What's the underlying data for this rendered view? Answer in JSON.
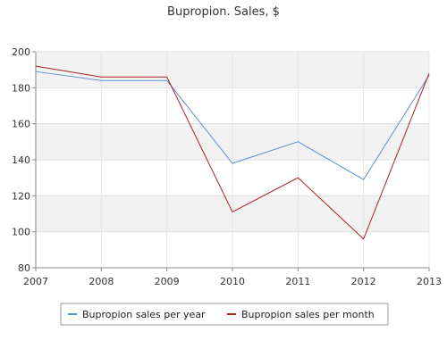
{
  "chart_data": {
    "type": "line",
    "title": "Bupropion. Sales, $",
    "xlabel": "",
    "ylabel": "",
    "x": [
      "2007",
      "2008",
      "2009",
      "2010",
      "2011",
      "2012",
      "2013"
    ],
    "y_ticks": [
      "80",
      "100",
      "120",
      "140",
      "160",
      "180",
      "200"
    ],
    "ylim": [
      80,
      200
    ],
    "grid": true,
    "legend_position": "bottom-center",
    "series": [
      {
        "name": "Bupropion sales per year",
        "color": "#5b8fd9",
        "values": [
          189,
          184,
          184,
          138,
          150,
          129,
          187
        ]
      },
      {
        "name": "Bupropion sales per month",
        "color": "#aa2222",
        "values": [
          192,
          186,
          186,
          111,
          130,
          96,
          188
        ]
      }
    ]
  }
}
